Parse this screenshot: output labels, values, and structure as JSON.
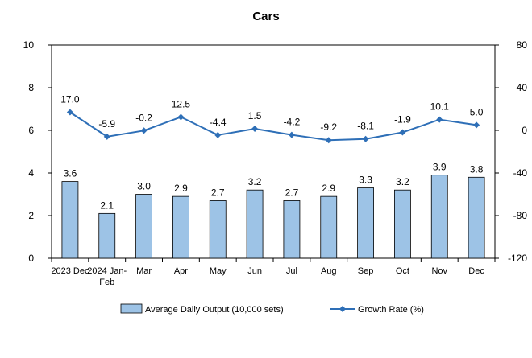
{
  "chart_data": {
    "type": "bar+line",
    "title": "Cars",
    "categories": [
      "2023 Dec",
      "2024 Jan-\nFeb",
      "Mar",
      "Apr",
      "May",
      "Jun",
      "Jul",
      "Aug",
      "Sep",
      "Oct",
      "Nov",
      "Dec"
    ],
    "series": [
      {
        "name": "Average Daily Output (10,000 sets)",
        "type": "bar",
        "axis": "left",
        "color": "#9dc3e6",
        "values": [
          3.6,
          2.1,
          3.0,
          2.9,
          2.7,
          3.2,
          2.7,
          2.9,
          3.3,
          3.2,
          3.9,
          3.8
        ],
        "labels": [
          "3.6",
          "2.1",
          "3.0",
          "2.9",
          "2.7",
          "3.2",
          "2.7",
          "2.9",
          "3.3",
          "3.2",
          "3.9",
          "3.8"
        ]
      },
      {
        "name": "Growth Rate (%)",
        "type": "line",
        "axis": "right",
        "color": "#2e6fb7",
        "values": [
          17.0,
          -5.9,
          -0.2,
          12.5,
          -4.4,
          1.5,
          -4.2,
          -9.2,
          -8.1,
          -1.9,
          10.1,
          5.0
        ],
        "labels": [
          "17.0",
          "-5.9",
          "-0.2",
          "12.5",
          "-4.4",
          "1.5",
          "-4.2",
          "-9.2",
          "-8.1",
          "-1.9",
          "10.1",
          "5.0"
        ]
      }
    ],
    "y_left": {
      "min": 0,
      "max": 10,
      "ticks": [
        "0",
        "2",
        "4",
        "6",
        "8",
        "10"
      ]
    },
    "y_right": {
      "min": -120,
      "max": 80,
      "ticks": [
        "-120",
        "-80",
        "-40",
        "0",
        "40",
        "80"
      ]
    },
    "grid": false,
    "legend_position": "bottom"
  }
}
